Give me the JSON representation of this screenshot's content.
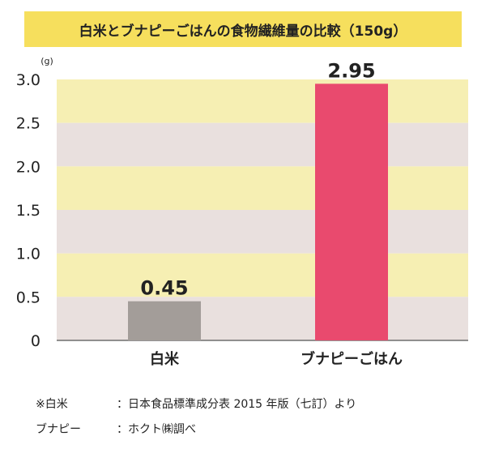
{
  "chart_data": {
    "type": "bar",
    "title": "白米とブナピーごはんの食物繊維量の比較（150g）",
    "ylabel": "(g)",
    "categories": [
      "白米",
      "ブナピーごはん"
    ],
    "values": [
      0.45,
      2.95
    ],
    "data_labels": [
      "0.45",
      "2.95"
    ],
    "yticks": [
      "0",
      "0.5",
      "1.0",
      "1.5",
      "2.0",
      "2.5",
      "3.0"
    ],
    "ylim": [
      0,
      3.0
    ],
    "bar_colors": [
      "#a39d99",
      "#e94a6e"
    ],
    "band_colors": [
      "#e9e0de",
      "#f6efb3"
    ],
    "grid": false,
    "legend": "none"
  },
  "notes": [
    {
      "key": "※白米",
      "value": "：日本食品標準成分表 2015 年版（七訂）より"
    },
    {
      "key": "ブナピー",
      "value": "：ホクト㈱調べ"
    }
  ]
}
